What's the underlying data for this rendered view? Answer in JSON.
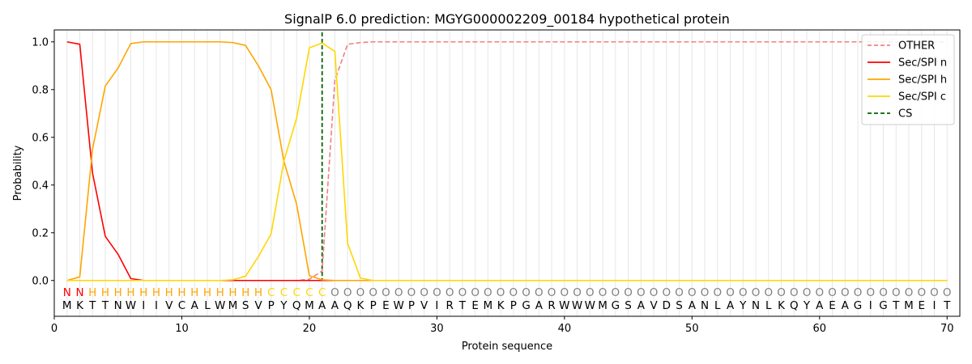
{
  "chart_data": {
    "type": "line",
    "title": "SignalP 6.0 prediction: MGYG000002209_00184 hypothetical protein",
    "xlabel": "Protein sequence",
    "ylabel": "Probability",
    "xlim": [
      0,
      71
    ],
    "ylim": [
      -0.15,
      1.05
    ],
    "x_ticks": [
      0,
      10,
      20,
      30,
      40,
      50,
      60,
      70
    ],
    "y_ticks": [
      0.0,
      0.2,
      0.4,
      0.6,
      0.8,
      1.0
    ],
    "x_tick_labels": [
      "0",
      "10",
      "20",
      "30",
      "40",
      "50",
      "60",
      "70"
    ],
    "y_tick_labels": [
      "0.0",
      "0.2",
      "0.4",
      "0.6",
      "0.8",
      "1.0"
    ],
    "grid": "vertical lines at each residue",
    "legend_position": "top-right",
    "sequence": [
      "M",
      "K",
      "T",
      "T",
      "N",
      "W",
      "I",
      "I",
      "V",
      "C",
      "A",
      "L",
      "W",
      "M",
      "S",
      "V",
      "P",
      "Y",
      "Q",
      "M",
      "A",
      "A",
      "Q",
      "K",
      "P",
      "E",
      "W",
      "P",
      "V",
      "I",
      "R",
      "T",
      "E",
      "M",
      "K",
      "P",
      "G",
      "A",
      "R",
      "W",
      "W",
      "W",
      "M",
      "G",
      "S",
      "A",
      "V",
      "D",
      "S",
      "A",
      "N",
      "L",
      "A",
      "Y",
      "N",
      "L",
      "K",
      "Q",
      "Y",
      "A",
      "E",
      "A",
      "G",
      "I",
      "G",
      "T",
      "M",
      "E",
      "I",
      "T"
    ],
    "labels": [
      "N",
      "N",
      "H",
      "H",
      "H",
      "H",
      "H",
      "H",
      "H",
      "H",
      "H",
      "H",
      "H",
      "H",
      "H",
      "H",
      "C",
      "C",
      "C",
      "C",
      "C",
      "O",
      "O",
      "O",
      "O",
      "O",
      "O",
      "O",
      "O",
      "O",
      "O",
      "O",
      "O",
      "O",
      "O",
      "O",
      "O",
      "O",
      "O",
      "O",
      "O",
      "O",
      "O",
      "O",
      "O",
      "O",
      "O",
      "O",
      "O",
      "O",
      "O",
      "O",
      "O",
      "O",
      "O",
      "O",
      "O",
      "O",
      "O",
      "O",
      "O",
      "O",
      "O",
      "O",
      "O",
      "O",
      "O",
      "O",
      "O",
      "O"
    ],
    "label_colors": {
      "N": "#ff0000",
      "H": "#ffa500",
      "C": "#ffd700",
      "O": "#808080"
    },
    "cs_position": 21,
    "series": [
      {
        "name": "OTHER",
        "color": "#f08080",
        "style": "dashed",
        "values": [
          0.0,
          0.0,
          0.0,
          0.0,
          0.0,
          0.0,
          0.0,
          0.0,
          0.0,
          0.0,
          0.0,
          0.0,
          0.0,
          0.0,
          0.0,
          0.0,
          0.0,
          0.0,
          0.0,
          0.005,
          0.04,
          0.84,
          0.99,
          0.997,
          1.0,
          1.0,
          1.0,
          1.0,
          1.0,
          1.0,
          1.0,
          1.0,
          1.0,
          1.0,
          1.0,
          1.0,
          1.0,
          1.0,
          1.0,
          1.0,
          1.0,
          1.0,
          1.0,
          1.0,
          1.0,
          1.0,
          1.0,
          1.0,
          1.0,
          1.0,
          1.0,
          1.0,
          1.0,
          1.0,
          1.0,
          1.0,
          1.0,
          1.0,
          1.0,
          1.0,
          1.0,
          1.0,
          1.0,
          1.0,
          1.0,
          1.0,
          1.0,
          1.0,
          1.0,
          1.0
        ]
      },
      {
        "name": "Sec/SPI n",
        "color": "#ff0000",
        "style": "solid",
        "values": [
          1.0,
          0.99,
          0.45,
          0.185,
          0.11,
          0.008,
          0.0,
          0.0,
          0.0,
          0.0,
          0.0,
          0.0,
          0.0,
          0.0,
          0.0,
          0.0,
          0.0,
          0.0,
          0.0,
          0.0,
          0.0,
          0.0,
          0.0,
          0.0,
          0.0,
          0.0,
          0.0,
          0.0,
          0.0,
          0.0,
          0.0,
          0.0,
          0.0,
          0.0,
          0.0,
          0.0,
          0.0,
          0.0,
          0.0,
          0.0,
          0.0,
          0.0,
          0.0,
          0.0,
          0.0,
          0.0,
          0.0,
          0.0,
          0.0,
          0.0,
          0.0,
          0.0,
          0.0,
          0.0,
          0.0,
          0.0,
          0.0,
          0.0,
          0.0,
          0.0,
          0.0,
          0.0,
          0.0,
          0.0,
          0.0,
          0.0,
          0.0,
          0.0,
          0.0,
          0.0
        ]
      },
      {
        "name": "Sec/SPI h",
        "color": "#ffa500",
        "style": "solid",
        "values": [
          0.0,
          0.015,
          0.55,
          0.815,
          0.89,
          0.993,
          1.0,
          1.0,
          1.0,
          1.0,
          1.0,
          1.0,
          1.0,
          0.997,
          0.985,
          0.9,
          0.8,
          0.5,
          0.32,
          0.02,
          0.003,
          0.0,
          0.0,
          0.0,
          0.0,
          0.0,
          0.0,
          0.0,
          0.0,
          0.0,
          0.0,
          0.0,
          0.0,
          0.0,
          0.0,
          0.0,
          0.0,
          0.0,
          0.0,
          0.0,
          0.0,
          0.0,
          0.0,
          0.0,
          0.0,
          0.0,
          0.0,
          0.0,
          0.0,
          0.0,
          0.0,
          0.0,
          0.0,
          0.0,
          0.0,
          0.0,
          0.0,
          0.0,
          0.0,
          0.0,
          0.0,
          0.0,
          0.0,
          0.0,
          0.0,
          0.0,
          0.0,
          0.0,
          0.0,
          0.0
        ]
      },
      {
        "name": "Sec/SPI c",
        "color": "#ffd700",
        "style": "solid",
        "values": [
          0.0,
          0.0,
          0.0,
          0.0,
          0.0,
          0.0,
          0.0,
          0.0,
          0.0,
          0.0,
          0.0,
          0.0,
          0.0,
          0.003,
          0.018,
          0.1,
          0.195,
          0.5,
          0.68,
          0.975,
          0.995,
          0.96,
          0.155,
          0.01,
          0.0,
          0.0,
          0.0,
          0.0,
          0.0,
          0.0,
          0.0,
          0.0,
          0.0,
          0.0,
          0.0,
          0.0,
          0.0,
          0.0,
          0.0,
          0.0,
          0.0,
          0.0,
          0.0,
          0.0,
          0.0,
          0.0,
          0.0,
          0.0,
          0.0,
          0.0,
          0.0,
          0.0,
          0.0,
          0.0,
          0.0,
          0.0,
          0.0,
          0.0,
          0.0,
          0.0,
          0.0,
          0.0,
          0.0,
          0.0,
          0.0,
          0.0,
          0.0,
          0.0,
          0.0,
          0.0
        ]
      }
    ],
    "legend": [
      {
        "name": "OTHER",
        "color": "#f08080",
        "style": "dashed"
      },
      {
        "name": "Sec/SPI n",
        "color": "#ff0000",
        "style": "solid"
      },
      {
        "name": "Sec/SPI h",
        "color": "#ffa500",
        "style": "solid"
      },
      {
        "name": "Sec/SPI c",
        "color": "#ffd700",
        "style": "solid"
      },
      {
        "name": "CS",
        "color": "#006400",
        "style": "dashed"
      }
    ]
  }
}
